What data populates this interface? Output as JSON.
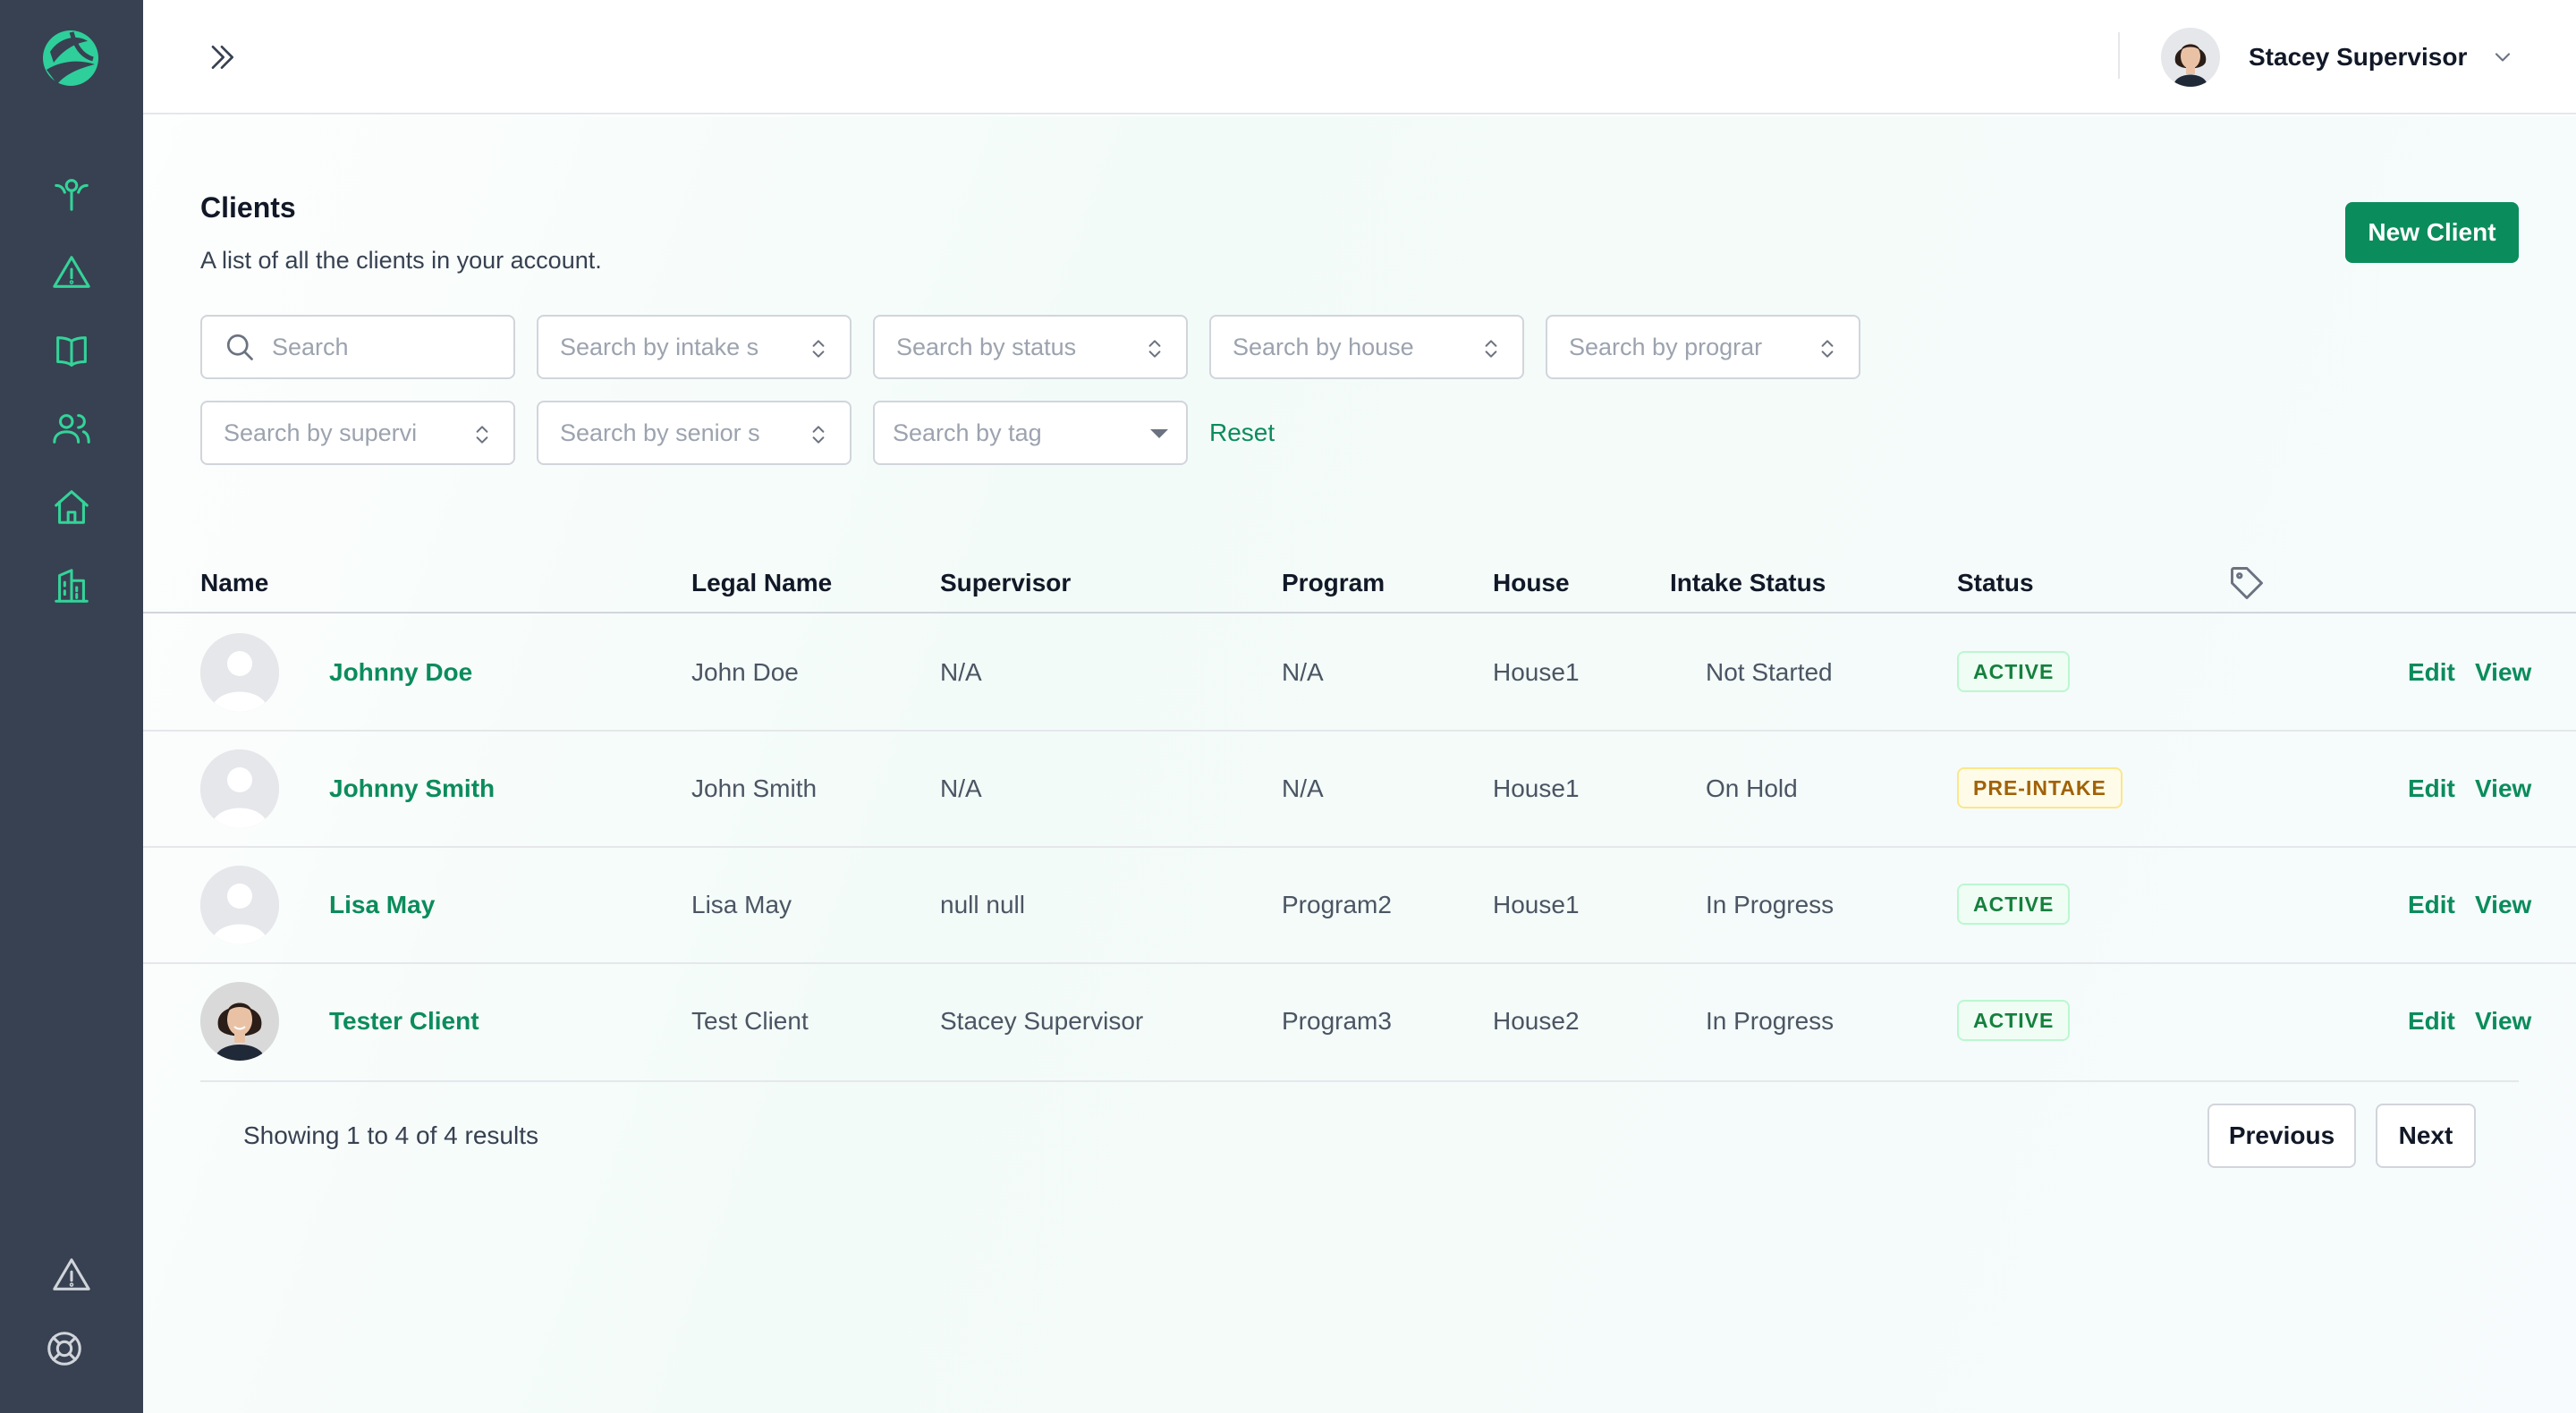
{
  "header": {
    "user_name": "Stacey Supervisor"
  },
  "page": {
    "title": "Clients",
    "subtitle": "A list of all the clients in your account.",
    "new_client_label": "New Client"
  },
  "filters": {
    "search_placeholder": "Search",
    "intake_status_placeholder": "Search by intake s",
    "status_placeholder": "Search by status",
    "house_placeholder": "Search by house",
    "program_placeholder": "Search by prograr",
    "supervisor_placeholder": "Search by supervi",
    "senior_placeholder": "Search by senior s",
    "tag_placeholder": "Search by tag",
    "reset_label": "Reset"
  },
  "table": {
    "columns": [
      "Name",
      "Legal Name",
      "Supervisor",
      "Program",
      "House",
      "Intake Status",
      "Status"
    ],
    "rows": [
      {
        "name": "Johnny Doe",
        "legal_name": "John Doe",
        "supervisor": "N/A",
        "program": "N/A",
        "house": "House1",
        "intake_status": "Not Started",
        "status": "ACTIVE",
        "edit": "Edit",
        "view": "View"
      },
      {
        "name": "Johnny Smith",
        "legal_name": "John Smith",
        "supervisor": "N/A",
        "program": "N/A",
        "house": "House1",
        "intake_status": "On Hold",
        "status": "PRE-INTAKE",
        "edit": "Edit",
        "view": "View"
      },
      {
        "name": "Lisa May",
        "legal_name": "Lisa May",
        "supervisor": "null null",
        "program": "Program2",
        "house": "House1",
        "intake_status": "In Progress",
        "status": "ACTIVE",
        "edit": "Edit",
        "view": "View"
      },
      {
        "name": "Tester Client",
        "legal_name": "Test Client",
        "supervisor": "Stacey Supervisor",
        "program": "Program3",
        "house": "House2",
        "intake_status": "In Progress",
        "status": "ACTIVE",
        "edit": "Edit",
        "view": "View"
      }
    ]
  },
  "pagination": {
    "summary": "Showing 1 to 4 of 4 results",
    "previous_label": "Previous",
    "next_label": "Next"
  },
  "sidebar": {
    "icons": [
      "person-growth-icon",
      "warning-icon",
      "book-icon",
      "users-icon",
      "home-icon",
      "building-icon"
    ],
    "bottom_icons": [
      "alert-icon",
      "help-lifebuoy-icon"
    ]
  },
  "colors": {
    "sidebar_bg": "#374151",
    "accent": "#0b8c5c",
    "icon_green": "#34d399",
    "active_badge": "#15803d",
    "pre_intake_badge": "#a16207"
  }
}
